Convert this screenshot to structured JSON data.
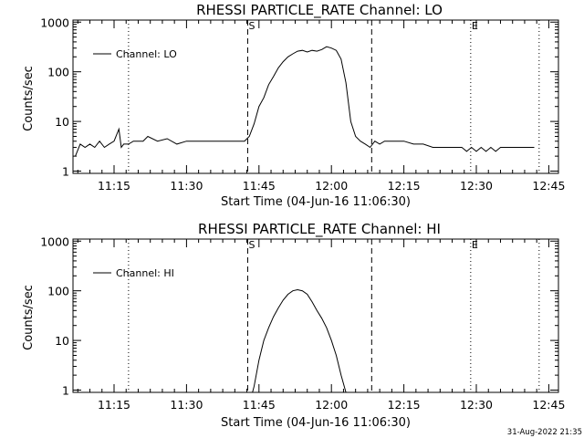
{
  "chart_data": [
    {
      "type": "line",
      "title": "RHESSI PARTICLE_RATE Channel: LO",
      "xlabel": "Start Time (04-Jun-16 11:06:30)",
      "ylabel": "Counts/sec",
      "xlim": [
        "11:06:30",
        "12:47:00"
      ],
      "ylim": [
        0.9,
        1100
      ],
      "yscale": "log",
      "x_ticks": [
        "11:15",
        "11:30",
        "11:45",
        "12:00",
        "12:15",
        "12:30",
        "12:45"
      ],
      "y_ticks": [
        "1",
        "10",
        "100",
        "1000"
      ],
      "legend": {
        "label": "Channel: LO",
        "position": "top-left"
      },
      "markers": [
        {
          "time": "11:18:00",
          "style": "dotted",
          "label": ""
        },
        {
          "time": "11:42:40",
          "style": "dashed",
          "label": "S"
        },
        {
          "time": "12:08:20",
          "style": "dashed",
          "label": ""
        },
        {
          "time": "12:28:50",
          "style": "dotted",
          "label": "E"
        },
        {
          "time": "12:43:00",
          "style": "dotted",
          "label": ""
        }
      ],
      "series": [
        {
          "name": "Channel: LO",
          "x": [
            "11:07:00",
            "11:08:00",
            "11:09:00",
            "11:10:00",
            "11:11:00",
            "11:12:00",
            "11:13:00",
            "11:14:00",
            "11:15:00",
            "11:16:00",
            "11:16:30",
            "11:17:00",
            "11:18:00",
            "11:19:00",
            "11:21:00",
            "11:22:00",
            "11:24:00",
            "11:26:00",
            "11:28:00",
            "11:30:00",
            "11:32:00",
            "11:34:00",
            "11:36:00",
            "11:38:00",
            "11:40:00",
            "11:42:00",
            "11:43:00",
            "11:44:00",
            "11:45:00",
            "11:46:00",
            "11:47:00",
            "11:48:00",
            "11:49:00",
            "11:50:00",
            "11:51:00",
            "11:52:00",
            "11:53:00",
            "11:54:00",
            "11:55:00",
            "11:56:00",
            "11:57:00",
            "11:58:00",
            "11:59:00",
            "12:00:00",
            "12:01:00",
            "12:02:00",
            "12:03:00",
            "12:04:00",
            "12:05:00",
            "12:06:00",
            "12:07:00",
            "12:08:00",
            "12:09:00",
            "12:10:00",
            "12:11:00",
            "12:13:00",
            "12:15:00",
            "12:17:00",
            "12:19:00",
            "12:21:00",
            "12:23:00",
            "12:25:00",
            "12:27:00",
            "12:28:00",
            "12:29:00",
            "12:30:00",
            "12:31:00",
            "12:32:00",
            "12:33:00",
            "12:34:00",
            "12:35:00",
            "12:37:00",
            "12:39:00",
            "12:41:00",
            "12:42:00"
          ],
          "y": [
            2,
            3.5,
            3,
            3.5,
            3,
            4,
            3,
            3.5,
            4,
            7,
            3,
            3.5,
            3.5,
            4,
            4,
            5,
            4,
            4.5,
            3.5,
            4,
            4,
            4,
            4,
            4,
            4,
            4,
            5,
            9,
            20,
            30,
            55,
            80,
            120,
            160,
            200,
            230,
            260,
            270,
            250,
            270,
            260,
            280,
            320,
            300,
            270,
            180,
            60,
            10,
            5,
            4,
            3.5,
            3,
            4,
            3.5,
            4,
            4,
            4,
            3.5,
            3.5,
            3,
            3,
            3,
            3,
            2.5,
            3,
            2.5,
            3,
            2.5,
            3,
            2.5,
            3,
            3,
            3,
            3,
            3
          ]
        }
      ]
    },
    {
      "type": "line",
      "title": "RHESSI PARTICLE_RATE Channel: HI",
      "xlabel": "Start Time (04-Jun-16 11:06:30)",
      "ylabel": "Counts/sec",
      "xlim": [
        "11:06:30",
        "12:47:00"
      ],
      "ylim": [
        0.9,
        1100
      ],
      "yscale": "log",
      "x_ticks": [
        "11:15",
        "11:30",
        "11:45",
        "12:00",
        "12:15",
        "12:30",
        "12:45"
      ],
      "y_ticks": [
        "1",
        "10",
        "100",
        "1000"
      ],
      "legend": {
        "label": "Channel: HI",
        "position": "top-left"
      },
      "markers": [
        {
          "time": "11:18:00",
          "style": "dotted",
          "label": ""
        },
        {
          "time": "11:42:40",
          "style": "dashed",
          "label": "S"
        },
        {
          "time": "12:08:20",
          "style": "dashed",
          "label": ""
        },
        {
          "time": "12:28:50",
          "style": "dotted",
          "label": "E"
        },
        {
          "time": "12:43:00",
          "style": "dotted",
          "label": ""
        }
      ],
      "series": [
        {
          "name": "Channel: HI",
          "x": [
            "11:43:40",
            "11:44:00",
            "11:45:00",
            "11:46:00",
            "11:47:00",
            "11:48:00",
            "11:49:00",
            "11:50:00",
            "11:51:00",
            "11:52:00",
            "11:53:00",
            "11:54:00",
            "11:55:00",
            "11:56:00",
            "11:57:00",
            "11:58:00",
            "11:59:00",
            "12:00:00",
            "12:01:00",
            "12:02:00",
            "12:03:00"
          ],
          "y": [
            0.9,
            1.2,
            4,
            10,
            18,
            30,
            45,
            65,
            85,
            100,
            105,
            100,
            85,
            60,
            40,
            28,
            18,
            10,
            5,
            2,
            0.9
          ]
        }
      ]
    }
  ],
  "footer": {
    "timestamp": "31-Aug-2022 21:35"
  }
}
